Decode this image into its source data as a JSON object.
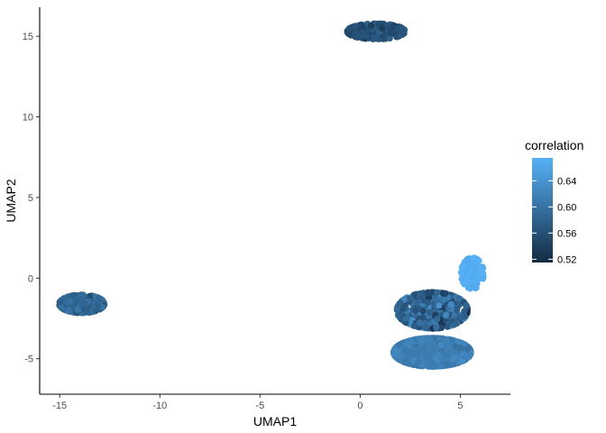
{
  "chart_data": {
    "type": "scatter",
    "title": "",
    "xlabel": "UMAP1",
    "ylabel": "UMAP2",
    "xlim": [
      -16.0,
      7.5
    ],
    "ylim": [
      -7.2,
      16.8
    ],
    "xticks": [
      -15,
      -10,
      -5,
      0,
      5
    ],
    "xtick_labels": [
      "-15",
      "-10",
      "-5",
      "0",
      "5"
    ],
    "yticks": [
      -5,
      0,
      5,
      10,
      15
    ],
    "ytick_labels": [
      "-5",
      "0",
      "5",
      "10",
      "15"
    ],
    "grid": false,
    "legend": {
      "title": "correlation",
      "position": "right",
      "range": [
        0.515,
        0.675
      ],
      "ticks": [
        0.52,
        0.56,
        0.6,
        0.64
      ],
      "tick_labels": [
        "0.52",
        "0.56",
        "0.60",
        "0.64"
      ],
      "color_low": "#132b43",
      "color_high": "#56b1f7"
    },
    "clusters": [
      {
        "name_hint": "top",
        "center": [
          0.8,
          15.3
        ],
        "spread": [
          0.9,
          0.3
        ],
        "n": 260,
        "corr": 0.555,
        "corr_spread": 0.01
      },
      {
        "name_hint": "left",
        "center": [
          -13.9,
          -1.6
        ],
        "spread": [
          0.7,
          0.35
        ],
        "n": 260,
        "corr": 0.585,
        "corr_spread": 0.01
      },
      {
        "name_hint": "bottom-right-lower",
        "center": [
          3.6,
          -4.6
        ],
        "spread": [
          1.2,
          0.55
        ],
        "n": 700,
        "corr": 0.615,
        "corr_spread": 0.008
      },
      {
        "name_hint": "bottom-right-upper",
        "center": [
          3.6,
          -2.0
        ],
        "spread": [
          1.1,
          0.7
        ],
        "n": 450,
        "corr": 0.58,
        "corr_spread": 0.025
      },
      {
        "name_hint": "bottom-right-tip",
        "center": [
          5.6,
          0.3
        ],
        "spread": [
          0.35,
          0.6
        ],
        "n": 120,
        "corr": 0.67,
        "corr_spread": 0.005
      }
    ]
  }
}
